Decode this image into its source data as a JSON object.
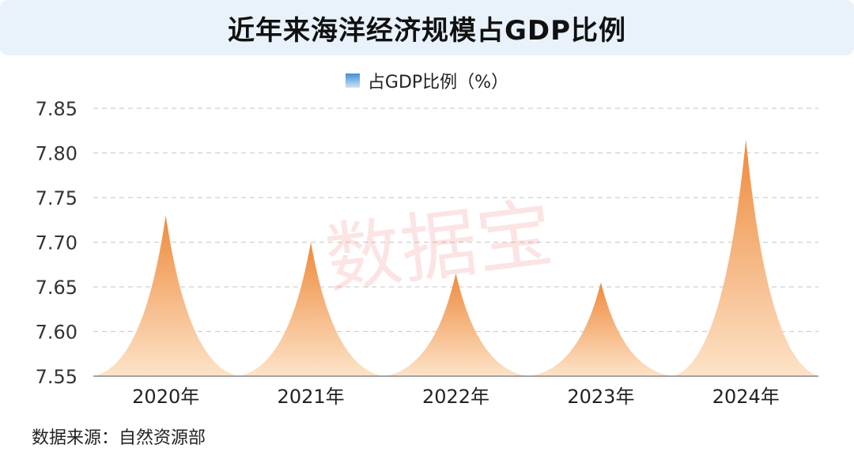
{
  "title": "近年来海洋经济规模占GDP比例",
  "legend_label": "占GDP比例（%）",
  "watermark": "数据宝",
  "source": "数据来源：自然资源部",
  "colors": {
    "title_bg": "#e9f2fb",
    "peak_top": "#ee8a3c",
    "peak_bottom": "#fde3c8",
    "grid": "#cfcfcf"
  },
  "chart_data": {
    "type": "bar",
    "title": "近年来海洋经济规模占GDP比例",
    "categories": [
      "2020年",
      "2021年",
      "2022年",
      "2023年",
      "2024年"
    ],
    "series": [
      {
        "name": "占GDP比例（%）",
        "values": [
          7.73,
          7.7,
          7.665,
          7.655,
          7.815
        ]
      }
    ],
    "ylim": [
      7.55,
      7.85
    ],
    "yticks": [
      "7.55",
      "7.60",
      "7.65",
      "7.70",
      "7.75",
      "7.80",
      "7.85"
    ],
    "grid": true,
    "legend_position": "top-center"
  }
}
